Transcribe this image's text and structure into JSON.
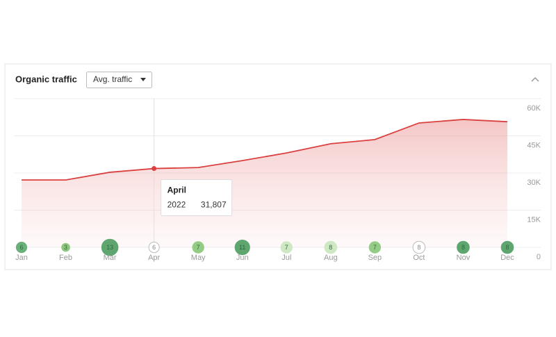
{
  "header": {
    "title": "Organic traffic",
    "dropdown": "Avg. traffic"
  },
  "chart_data": {
    "type": "area",
    "categories": [
      "Jan",
      "Feb",
      "Mar",
      "Apr",
      "May",
      "Jun",
      "Jul",
      "Aug",
      "Sep",
      "Oct",
      "Nov",
      "Dec"
    ],
    "series": [
      {
        "name": "2022",
        "color": "#d9403f",
        "values": [
          27200,
          27200,
          30300,
          31807,
          32200,
          35000,
          38100,
          41800,
          43500,
          50200,
          51600,
          50700
        ]
      }
    ],
    "ylim": [
      0,
      60000
    ],
    "yticks": [
      0,
      {
        "value": 15000,
        "label": "15K"
      },
      {
        "value": 30000,
        "label": "30K"
      },
      {
        "value": 45000,
        "label": "45K"
      },
      {
        "value": 60000,
        "label": "60K"
      }
    ],
    "grid": true,
    "badges": [
      6,
      3,
      13,
      6,
      7,
      11,
      7,
      8,
      7,
      8,
      8,
      8
    ],
    "badge_colors": [
      "#6ab07a",
      "#8dc77f",
      "#5ea56f",
      "#ffffff",
      "#95cc85",
      "#5ea56f",
      "#cfe8c4",
      "#cfe8c4",
      "#95cc85",
      "#ffffff",
      "#5ea56f",
      "#5ea56f"
    ],
    "tooltip": {
      "title": "April",
      "series": "2022",
      "value": 31807,
      "value_label": "31,807"
    }
  }
}
